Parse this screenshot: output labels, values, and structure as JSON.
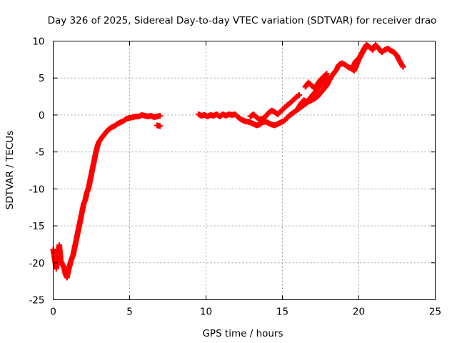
{
  "chart_data": {
    "type": "scatter",
    "title": "Day 326 of 2025, Sidereal Day-to-day VTEC variation (SDTVAR) for receiver drao",
    "xlabel": "GPS time / hours",
    "ylabel": "SDTVAR / TECUs",
    "xlim": [
      0,
      25
    ],
    "ylim": [
      -25,
      10
    ],
    "xticks": [
      0,
      5,
      10,
      15,
      20,
      25
    ],
    "yticks": [
      -25,
      -20,
      -15,
      -10,
      -5,
      0,
      5,
      10
    ],
    "xtick_labels": [
      "0",
      "5",
      "10",
      "15",
      "20",
      "25"
    ],
    "ytick_labels": [
      "-25",
      "-20",
      "-15",
      "-10",
      "-5",
      "0",
      "5",
      "10"
    ],
    "grid": true,
    "marker": "plus",
    "series": [
      {
        "name": "SDTVAR",
        "color": "#ff0000",
        "segments": [
          [
            [
              0.0,
              -18.2
            ],
            [
              0.2,
              -20.8
            ],
            [
              0.3,
              -19.0
            ],
            [
              0.4,
              -17.6
            ],
            [
              0.5,
              -19.8
            ],
            [
              0.6,
              -20.2
            ],
            [
              0.7,
              -20.6
            ],
            [
              0.8,
              -21.5
            ],
            [
              0.9,
              -22.0
            ],
            [
              1.0,
              -21.0
            ],
            [
              1.1,
              -20.2
            ],
            [
              1.2,
              -19.5
            ],
            [
              1.3,
              -19.0
            ],
            [
              1.4,
              -18.0
            ],
            [
              1.5,
              -17.0
            ],
            [
              1.6,
              -16.0
            ],
            [
              1.7,
              -15.0
            ],
            [
              1.8,
              -14.0
            ],
            [
              1.9,
              -13.0
            ],
            [
              2.0,
              -12.0
            ],
            [
              2.1,
              -11.5
            ],
            [
              2.2,
              -10.5
            ],
            [
              2.3,
              -10.0
            ],
            [
              2.4,
              -9.0
            ],
            [
              2.5,
              -8.0
            ],
            [
              2.6,
              -7.0
            ],
            [
              2.7,
              -6.0
            ],
            [
              2.8,
              -5.0
            ],
            [
              2.9,
              -4.2
            ],
            [
              3.0,
              -3.6
            ],
            [
              3.2,
              -3.0
            ],
            [
              3.4,
              -2.5
            ],
            [
              3.6,
              -2.0
            ],
            [
              3.8,
              -1.7
            ],
            [
              4.0,
              -1.5
            ],
            [
              4.2,
              -1.2
            ],
            [
              4.4,
              -1.0
            ],
            [
              4.6,
              -0.8
            ],
            [
              4.8,
              -0.5
            ],
            [
              5.0,
              -0.4
            ],
            [
              5.2,
              -0.3
            ],
            [
              5.4,
              -0.2
            ],
            [
              5.6,
              -0.2
            ],
            [
              5.8,
              0.0
            ],
            [
              6.0,
              -0.1
            ],
            [
              6.2,
              -0.2
            ],
            [
              6.4,
              -0.1
            ],
            [
              6.6,
              -0.3
            ],
            [
              6.8,
              -0.2
            ],
            [
              7.0,
              -0.1
            ]
          ],
          [
            [
              6.8,
              -1.4
            ],
            [
              7.0,
              -1.5
            ]
          ],
          [
            [
              9.5,
              0.1
            ],
            [
              9.7,
              -0.1
            ],
            [
              9.9,
              0.0
            ],
            [
              10.1,
              -0.2
            ],
            [
              10.3,
              0.0
            ],
            [
              10.5,
              -0.1
            ],
            [
              10.7,
              0.1
            ],
            [
              10.9,
              -0.2
            ],
            [
              11.1,
              0.1
            ],
            [
              11.3,
              -0.1
            ],
            [
              11.5,
              0.1
            ],
            [
              11.7,
              0.0
            ],
            [
              11.9,
              0.1
            ],
            [
              12.1,
              -0.3
            ],
            [
              12.3,
              -0.6
            ],
            [
              12.5,
              -0.8
            ],
            [
              12.7,
              -0.9
            ],
            [
              12.9,
              -1.0
            ],
            [
              13.1,
              -1.2
            ],
            [
              13.3,
              -1.4
            ],
            [
              13.5,
              -1.3
            ],
            [
              13.7,
              -1.0
            ],
            [
              13.9,
              -0.9
            ],
            [
              14.1,
              -1.1
            ],
            [
              14.3,
              -1.3
            ],
            [
              14.5,
              -1.4
            ],
            [
              14.7,
              -1.2
            ],
            [
              14.9,
              -1.0
            ],
            [
              15.1,
              -0.8
            ],
            [
              15.3,
              -0.4
            ],
            [
              15.5,
              0.0
            ],
            [
              15.7,
              0.3
            ],
            [
              15.9,
              0.6
            ],
            [
              16.1,
              0.9
            ],
            [
              16.3,
              1.2
            ],
            [
              16.5,
              1.5
            ],
            [
              16.7,
              1.8
            ],
            [
              16.9,
              2.0
            ],
            [
              17.1,
              2.2
            ],
            [
              17.3,
              2.5
            ],
            [
              17.5,
              3.0
            ],
            [
              17.7,
              3.5
            ],
            [
              17.9,
              4.0
            ],
            [
              18.1,
              4.8
            ],
            [
              18.3,
              5.5
            ],
            [
              18.5,
              6.0
            ],
            [
              18.7,
              6.8
            ],
            [
              18.9,
              7.0
            ],
            [
              19.1,
              6.8
            ],
            [
              19.3,
              6.5
            ],
            [
              19.5,
              6.3
            ],
            [
              19.7,
              6.0
            ],
            [
              19.9,
              7.0
            ],
            [
              20.1,
              8.0
            ],
            [
              20.3,
              8.8
            ],
            [
              20.5,
              9.5
            ],
            [
              20.7,
              9.2
            ],
            [
              20.9,
              8.8
            ],
            [
              21.1,
              9.5
            ],
            [
              21.3,
              9.0
            ],
            [
              21.5,
              8.5
            ],
            [
              21.7,
              8.8
            ],
            [
              21.9,
              9.0
            ],
            [
              22.1,
              8.7
            ],
            [
              22.3,
              8.5
            ],
            [
              22.5,
              8.0
            ],
            [
              22.7,
              7.2
            ],
            [
              22.9,
              6.5
            ]
          ],
          [
            [
              12.9,
              -0.2
            ],
            [
              13.1,
              0.1
            ],
            [
              13.3,
              -0.3
            ],
            [
              13.5,
              -0.6
            ],
            [
              13.7,
              -0.5
            ],
            [
              13.9,
              -0.2
            ],
            [
              14.1,
              0.3
            ],
            [
              14.3,
              0.6
            ],
            [
              14.5,
              0.4
            ],
            [
              14.7,
              0.1
            ],
            [
              14.9,
              0.5
            ],
            [
              15.1,
              0.9
            ],
            [
              15.3,
              1.3
            ],
            [
              15.5,
              1.6
            ],
            [
              15.7,
              2.0
            ],
            [
              15.9,
              2.4
            ],
            [
              16.1,
              2.7
            ]
          ],
          [
            [
              16.0,
              0.8
            ],
            [
              16.2,
              1.5
            ],
            [
              16.4,
              2.0
            ],
            [
              16.6,
              1.8
            ],
            [
              16.8,
              2.2
            ],
            [
              17.0,
              2.8
            ],
            [
              17.2,
              3.2
            ],
            [
              17.4,
              3.8
            ],
            [
              17.6,
              4.2
            ],
            [
              17.8,
              4.8
            ],
            [
              18.0,
              5.2
            ]
          ],
          [
            [
              16.5,
              3.8
            ],
            [
              16.7,
              4.4
            ],
            [
              16.9,
              4.0
            ],
            [
              17.1,
              3.6
            ],
            [
              17.3,
              4.2
            ],
            [
              17.5,
              4.8
            ],
            [
              17.7,
              5.2
            ],
            [
              17.9,
              5.6
            ]
          ],
          [
            [
              19.6,
              6.4
            ],
            [
              19.8,
              7.3
            ],
            [
              20.0,
              7.6
            ],
            [
              20.2,
              8.3
            ],
            [
              20.4,
              9.0
            ]
          ]
        ]
      }
    ]
  }
}
